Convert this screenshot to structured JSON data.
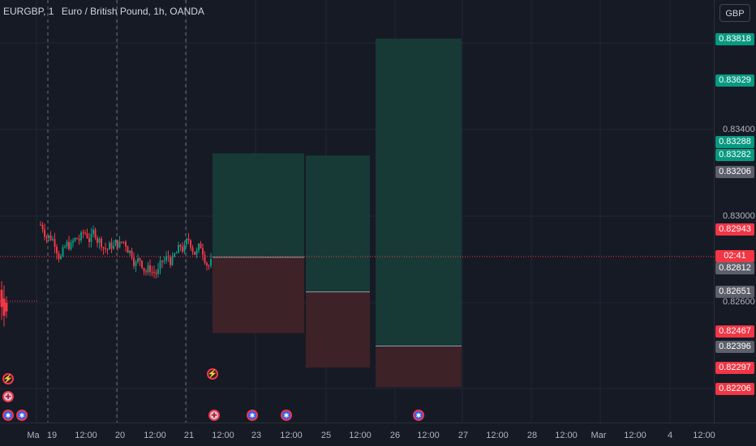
{
  "header": {
    "symbol": "EURGBP, 1",
    "name": "Euro / British Pound, 1h, OANDA",
    "currency_button": "GBP"
  },
  "price_axis": {
    "ticks": [
      "0.83400",
      "0.83000",
      "0.82600"
    ],
    "labels": [
      {
        "text": "0.83818",
        "color": "green"
      },
      {
        "text": "0.83629",
        "color": "green"
      },
      {
        "text": "0.83288",
        "color": "green"
      },
      {
        "text": "0.83282",
        "color": "green"
      },
      {
        "text": "0.83206",
        "color": "grey"
      },
      {
        "text": "0.82943",
        "color": "red"
      },
      {
        "text": "02:41",
        "color": "red"
      },
      {
        "text": "0.82812",
        "color": "grey"
      },
      {
        "text": "0.82651",
        "color": "grey"
      },
      {
        "text": "0.82467",
        "color": "red"
      },
      {
        "text": "0.82396",
        "color": "grey"
      },
      {
        "text": "0.82297",
        "color": "red"
      },
      {
        "text": "0.82206",
        "color": "red"
      }
    ]
  },
  "time_axis": {
    "labels": [
      "Ma",
      "19",
      "12:00",
      "20",
      "12:00",
      "21",
      "12:00",
      "23",
      "12:00",
      "25",
      "12:00",
      "26",
      "12:00",
      "27",
      "12:00",
      "28",
      "12:00",
      "Mar",
      "12:00",
      "4",
      "12:00"
    ]
  },
  "positions": [
    {
      "type": "long",
      "entry": 0.8281,
      "target": 0.8329,
      "stop": 0.8246
    },
    {
      "type": "long",
      "entry": 0.8265,
      "target": 0.8328,
      "stop": 0.823
    },
    {
      "type": "long",
      "entry": 0.824,
      "target": 0.8382,
      "stop": 0.8221
    }
  ],
  "events": [
    {
      "icon": "lightning-icon"
    },
    {
      "icon": "uk-flag-icon"
    },
    {
      "icon": "eu-flag-icon"
    },
    {
      "icon": "eu-flag-icon"
    },
    {
      "icon": "lightning-icon"
    },
    {
      "icon": "uk-flag-icon"
    },
    {
      "icon": "eu-flag-icon"
    },
    {
      "icon": "eu-flag-icon"
    },
    {
      "icon": "eu-flag-icon"
    }
  ],
  "colors": {
    "background": "#161a25",
    "profit_zone": "#173a36",
    "loss_zone": "#3d2228",
    "bull_candle": "#089981",
    "bear_candle": "#f23645",
    "current_price_line": "#f23645"
  }
}
